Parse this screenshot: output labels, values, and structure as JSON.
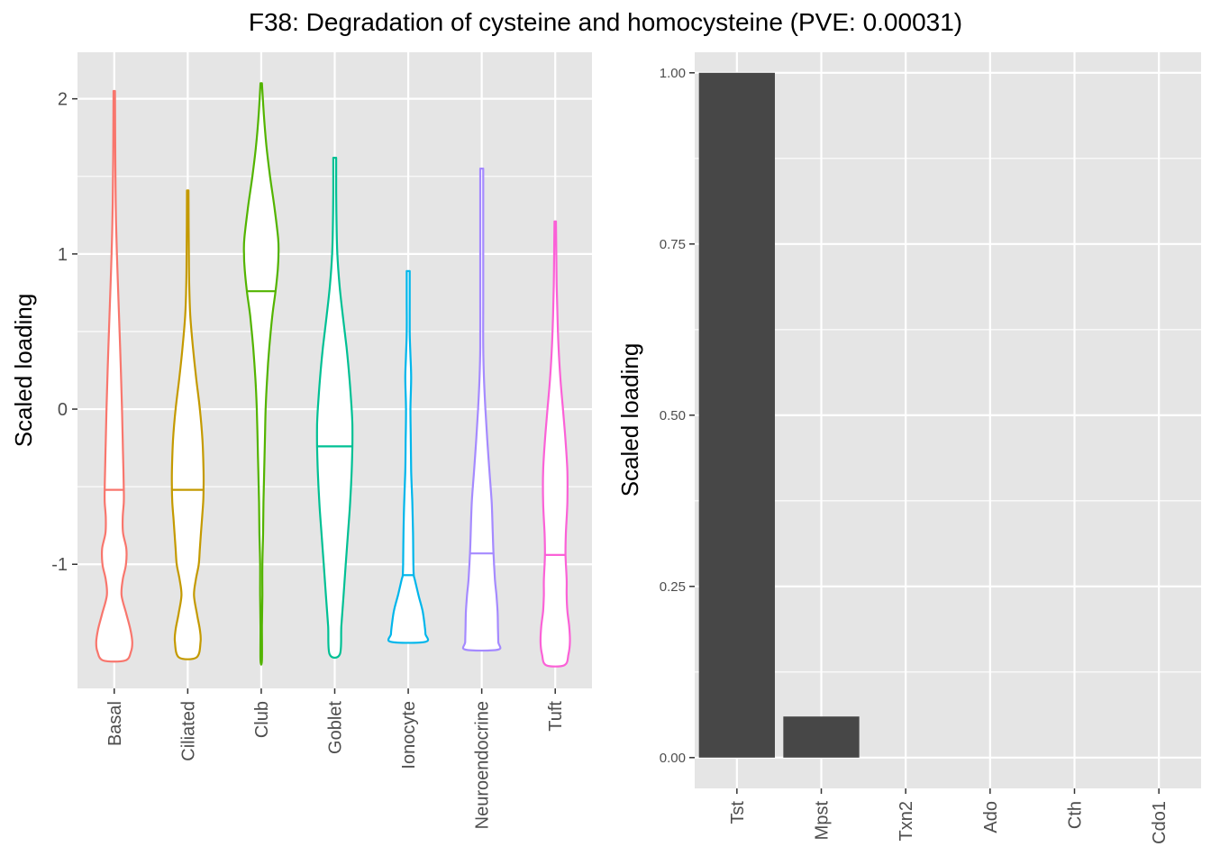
{
  "title": "F38: Degradation of cysteine and homocysteine (PVE: 0.00031)",
  "colors": {
    "panel_bg": "#e5e5e5",
    "grid": "#ffffff",
    "bar_fill": "#474747",
    "tick": "#333333"
  },
  "chart_data": [
    {
      "type": "violin",
      "ylabel": "Scaled loading",
      "xlabel": "",
      "ylim": [
        -1.8,
        2.3
      ],
      "y_ticks": [
        -1,
        0,
        1,
        2
      ],
      "y_tick_labels": [
        "-1",
        "0",
        "1",
        "2"
      ],
      "grid": true,
      "categories": [
        "Basal",
        "Ciliated",
        "Club",
        "Goblet",
        "Ionocyte",
        "Neuroendocrine",
        "Tuft"
      ],
      "series": [
        {
          "category": "Basal",
          "color": "#f8766d",
          "min": -1.62,
          "max": 2.05,
          "median": -0.52,
          "profile": [
            [
              -1.62,
              0.3
            ],
            [
              -1.56,
              0.46
            ],
            [
              -1.5,
              0.49
            ],
            [
              -1.42,
              0.44
            ],
            [
              -1.32,
              0.33
            ],
            [
              -1.2,
              0.2
            ],
            [
              -1.1,
              0.23
            ],
            [
              -1.0,
              0.32
            ],
            [
              -0.9,
              0.33
            ],
            [
              -0.8,
              0.24
            ],
            [
              -0.7,
              0.23
            ],
            [
              -0.6,
              0.26
            ],
            [
              -0.52,
              0.26
            ],
            [
              -0.4,
              0.25
            ],
            [
              -0.2,
              0.23
            ],
            [
              0.0,
              0.21
            ],
            [
              0.4,
              0.16
            ],
            [
              0.8,
              0.1
            ],
            [
              1.2,
              0.05
            ],
            [
              1.6,
              0.03
            ],
            [
              2.05,
              0.02
            ]
          ]
        },
        {
          "category": "Ciliated",
          "color": "#c49a00",
          "min": -1.6,
          "max": 1.41,
          "median": -0.52,
          "profile": [
            [
              -1.6,
              0.24
            ],
            [
              -1.5,
              0.35
            ],
            [
              -1.42,
              0.33
            ],
            [
              -1.32,
              0.25
            ],
            [
              -1.2,
              0.17
            ],
            [
              -1.1,
              0.22
            ],
            [
              -1.0,
              0.3
            ],
            [
              -0.9,
              0.33
            ],
            [
              -0.8,
              0.36
            ],
            [
              -0.7,
              0.39
            ],
            [
              -0.6,
              0.42
            ],
            [
              -0.52,
              0.43
            ],
            [
              -0.4,
              0.43
            ],
            [
              -0.2,
              0.4
            ],
            [
              0.0,
              0.33
            ],
            [
              0.2,
              0.23
            ],
            [
              0.4,
              0.14
            ],
            [
              0.6,
              0.07
            ],
            [
              0.8,
              0.04
            ],
            [
              1.0,
              0.03
            ],
            [
              1.41,
              0.02
            ]
          ]
        },
        {
          "category": "Club",
          "color": "#53b400",
          "min": -1.62,
          "max": 2.1,
          "median": 0.76,
          "profile": [
            [
              -1.62,
              0.02
            ],
            [
              -1.4,
              0.02
            ],
            [
              -1.2,
              0.03
            ],
            [
              -1.0,
              0.03
            ],
            [
              -0.8,
              0.05
            ],
            [
              -0.6,
              0.06
            ],
            [
              -0.4,
              0.08
            ],
            [
              -0.2,
              0.1
            ],
            [
              0.0,
              0.12
            ],
            [
              0.2,
              0.16
            ],
            [
              0.4,
              0.22
            ],
            [
              0.6,
              0.3
            ],
            [
              0.76,
              0.39
            ],
            [
              0.9,
              0.45
            ],
            [
              1.0,
              0.47
            ],
            [
              1.1,
              0.46
            ],
            [
              1.3,
              0.36
            ],
            [
              1.5,
              0.24
            ],
            [
              1.7,
              0.14
            ],
            [
              1.9,
              0.07
            ],
            [
              2.1,
              0.02
            ]
          ]
        },
        {
          "category": "Goblet",
          "color": "#00c094",
          "min": -1.58,
          "max": 1.62,
          "median": -0.24,
          "profile": [
            [
              -1.58,
              0.14
            ],
            [
              -1.4,
              0.18
            ],
            [
              -1.2,
              0.24
            ],
            [
              -1.0,
              0.3
            ],
            [
              -0.8,
              0.36
            ],
            [
              -0.6,
              0.42
            ],
            [
              -0.4,
              0.46
            ],
            [
              -0.24,
              0.48
            ],
            [
              -0.1,
              0.48
            ],
            [
              0.0,
              0.46
            ],
            [
              0.2,
              0.4
            ],
            [
              0.4,
              0.32
            ],
            [
              0.6,
              0.22
            ],
            [
              0.8,
              0.13
            ],
            [
              1.0,
              0.07
            ],
            [
              1.2,
              0.05
            ],
            [
              1.4,
              0.04
            ],
            [
              1.62,
              0.04
            ]
          ]
        },
        {
          "category": "Ionocyte",
          "color": "#00b6eb",
          "min": -1.5,
          "max": 0.89,
          "median": -1.07,
          "profile": [
            [
              -1.5,
              0.47
            ],
            [
              -1.45,
              0.47
            ],
            [
              -1.4,
              0.45
            ],
            [
              -1.3,
              0.39
            ],
            [
              -1.2,
              0.28
            ],
            [
              -1.1,
              0.18
            ],
            [
              -1.07,
              0.15
            ],
            [
              -1.0,
              0.14
            ],
            [
              -0.8,
              0.13
            ],
            [
              -0.6,
              0.11
            ],
            [
              -0.4,
              0.08
            ],
            [
              -0.2,
              0.07
            ],
            [
              0.0,
              0.06
            ],
            [
              0.2,
              0.08
            ],
            [
              0.35,
              0.06
            ],
            [
              0.5,
              0.04
            ],
            [
              0.7,
              0.04
            ],
            [
              0.89,
              0.04
            ]
          ]
        },
        {
          "category": "Neuroendocrine",
          "color": "#a58aff",
          "min": -1.55,
          "max": 1.55,
          "median": -0.93,
          "profile": [
            [
              -1.55,
              0.44
            ],
            [
              -1.5,
              0.45
            ],
            [
              -1.4,
              0.44
            ],
            [
              -1.3,
              0.43
            ],
            [
              -1.2,
              0.4
            ],
            [
              -1.1,
              0.36
            ],
            [
              -0.93,
              0.32
            ],
            [
              -0.8,
              0.3
            ],
            [
              -0.6,
              0.27
            ],
            [
              -0.4,
              0.21
            ],
            [
              -0.2,
              0.15
            ],
            [
              0.0,
              0.1
            ],
            [
              0.2,
              0.06
            ],
            [
              0.4,
              0.04
            ],
            [
              0.7,
              0.04
            ],
            [
              1.0,
              0.04
            ],
            [
              1.3,
              0.04
            ],
            [
              1.55,
              0.04
            ]
          ]
        },
        {
          "category": "Tuft",
          "color": "#fb61d7",
          "min": -1.65,
          "max": 1.21,
          "median": -0.94,
          "profile": [
            [
              -1.65,
              0.25
            ],
            [
              -1.58,
              0.36
            ],
            [
              -1.5,
              0.4
            ],
            [
              -1.4,
              0.38
            ],
            [
              -1.3,
              0.33
            ],
            [
              -1.2,
              0.31
            ],
            [
              -1.1,
              0.31
            ],
            [
              -0.94,
              0.28
            ],
            [
              -0.8,
              0.29
            ],
            [
              -0.6,
              0.33
            ],
            [
              -0.4,
              0.33
            ],
            [
              -0.2,
              0.28
            ],
            [
              0.0,
              0.21
            ],
            [
              0.2,
              0.14
            ],
            [
              0.4,
              0.09
            ],
            [
              0.6,
              0.06
            ],
            [
              0.8,
              0.04
            ],
            [
              1.0,
              0.03
            ],
            [
              1.21,
              0.02
            ]
          ]
        }
      ]
    },
    {
      "type": "bar",
      "ylabel": "Scaled loading",
      "xlabel": "",
      "ylim": [
        -0.045,
        1.03
      ],
      "y_ticks": [
        0,
        0.25,
        0.5,
        0.75,
        1
      ],
      "y_tick_labels": [
        "0.00",
        "0.25",
        "0.50",
        "0.75",
        "1.00"
      ],
      "grid": true,
      "categories": [
        "Tst",
        "Mpst",
        "Txn2",
        "Ado",
        "Cth",
        "Cdo1"
      ],
      "values": [
        1.0,
        0.06,
        0,
        0,
        0,
        0
      ]
    }
  ]
}
